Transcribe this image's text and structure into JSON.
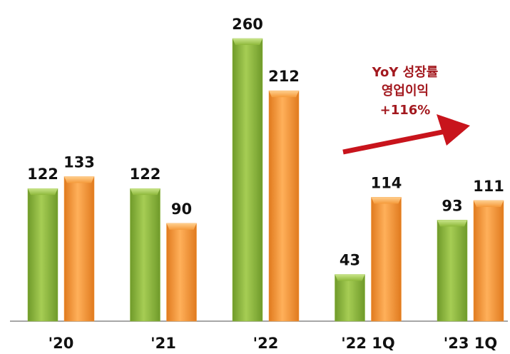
{
  "chart_data": {
    "type": "bar",
    "categories": [
      "'20",
      "'21",
      "'22",
      "'22 1Q",
      "'23 1Q"
    ],
    "series": [
      {
        "values": [
          122,
          122,
          260,
          43,
          93
        ],
        "color": "#8db83a"
      },
      {
        "values": [
          133,
          90,
          212,
          114,
          111
        ],
        "color": "#f59a3a"
      }
    ],
    "data_labels": [
      [
        "122",
        "122",
        "260",
        "43",
        "93"
      ],
      [
        "133",
        "90",
        "212",
        "114",
        "111"
      ]
    ],
    "ylim": [
      0,
      260
    ],
    "grid": false,
    "annotation": {
      "lines": [
        "YoY 성장률",
        "영업이익",
        "+116%"
      ],
      "color": "#a3191f",
      "arrow_color": "#c8141c"
    }
  }
}
